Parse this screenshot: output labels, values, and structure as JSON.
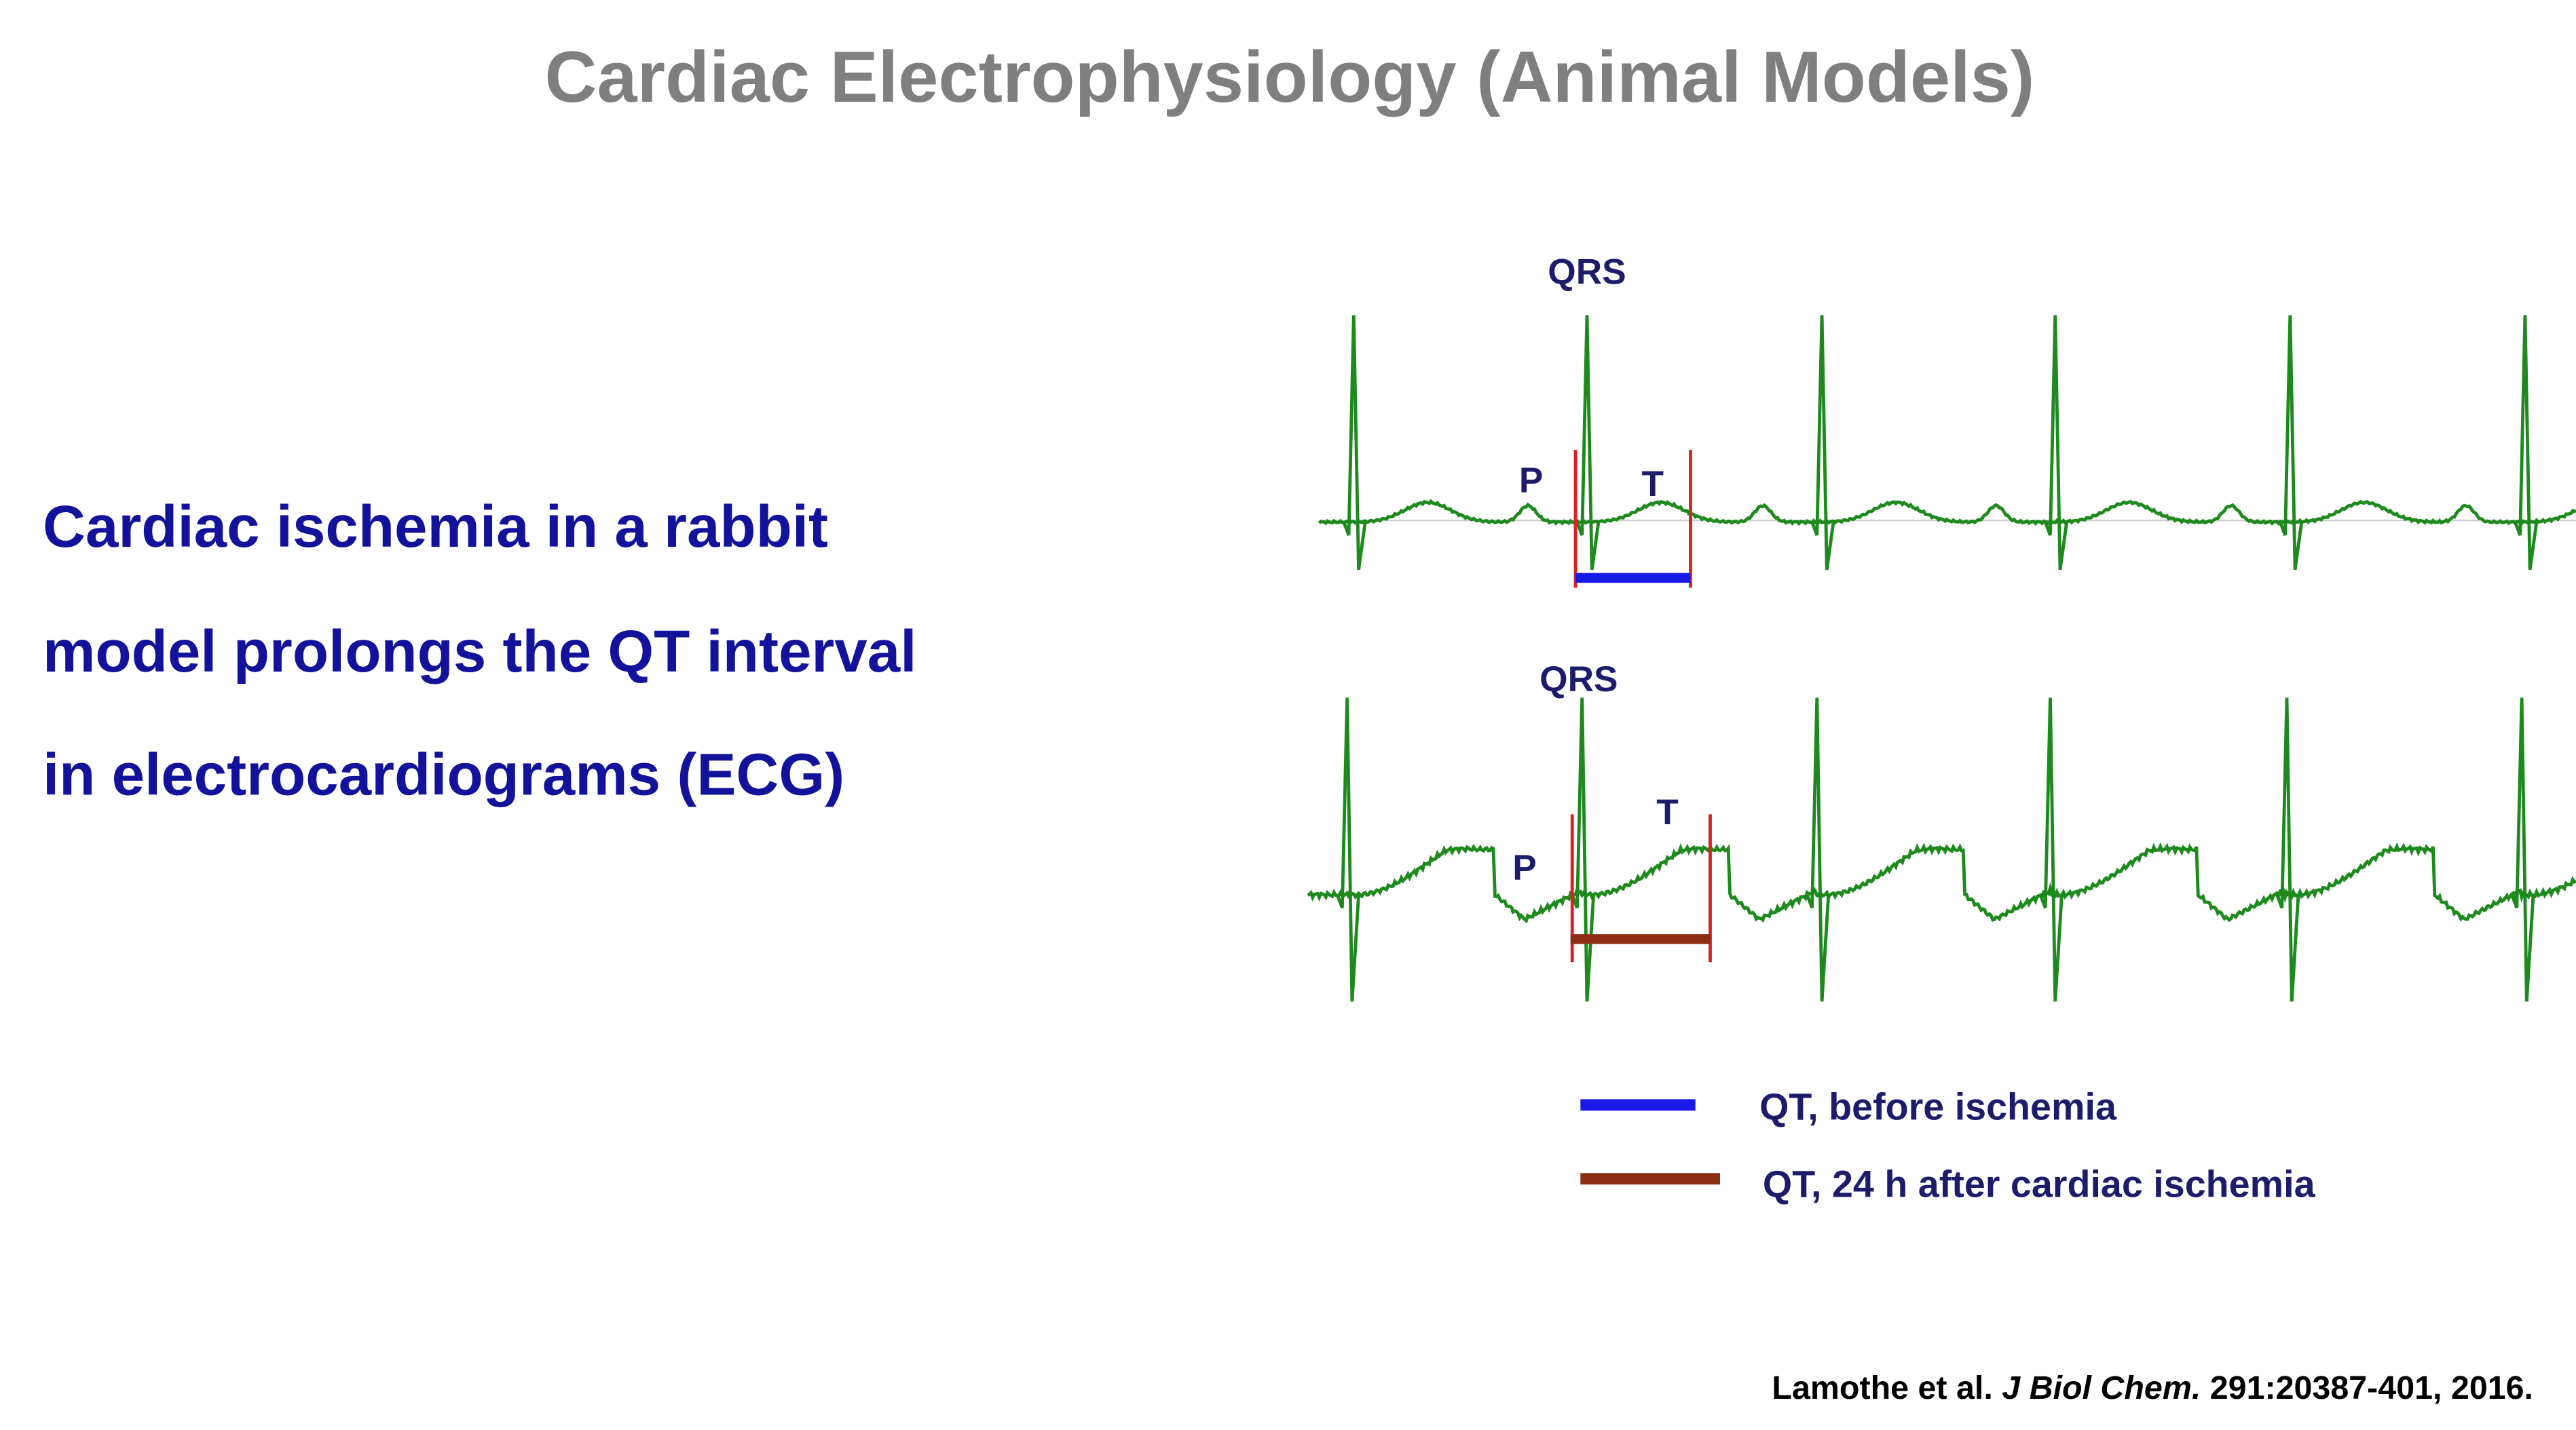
{
  "title": "Cardiac Electrophysiology (Animal Models)",
  "body_lines": [
    "Cardiac ischemia in a rabbit",
    "model prolongs the QT interval",
    "in electrocardiograms (ECG)"
  ],
  "ecg_top": {
    "qrs": "QRS",
    "p": "P",
    "t": "T"
  },
  "ecg_bottom": {
    "qrs": "QRS",
    "p": "P",
    "t": "T"
  },
  "legend": [
    "QT, before ischemia",
    "QT, 24 h after cardiac ischemia"
  ],
  "citation": {
    "authors": "Lamothe et al. ",
    "journal": "J Biol Chem.",
    "details": " 291:20387-401, 2016."
  }
}
